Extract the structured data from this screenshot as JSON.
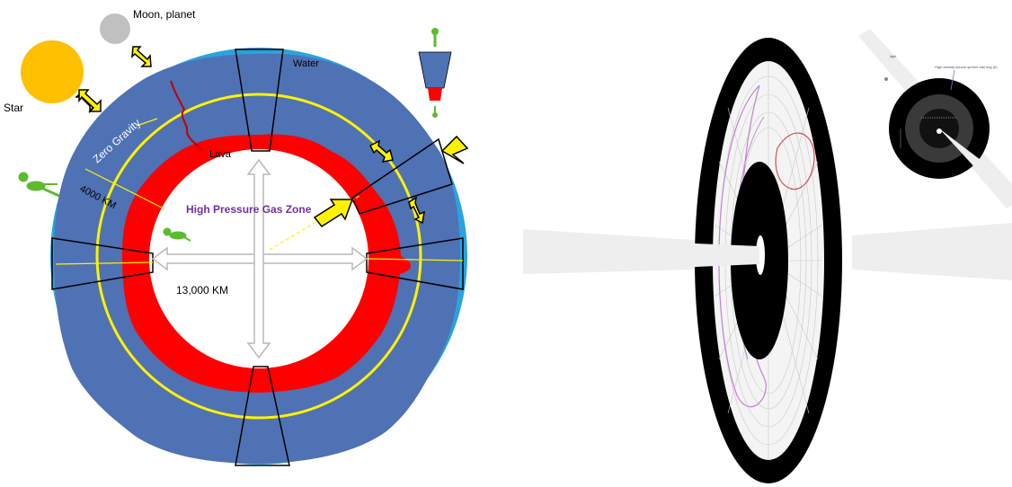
{
  "left_diagram": {
    "labels": {
      "moon": "Moon, planet",
      "star": "Star",
      "water": "Water",
      "zero_gravity": "Zero Gravity",
      "lava": "Lava",
      "radius": "4000 KM",
      "core": "High Pressure Gas Zone",
      "diameter": "13,000 KM"
    },
    "colors": {
      "ocean": "#29A3DE",
      "crust": "#4F72B4",
      "lava": "#FF0000",
      "ring": "#FFF200",
      "star": "#FFC000",
      "moon": "#C0C0C0",
      "arrow": "#FFF200",
      "figure": "#5DBB2E",
      "core_text": "#7030A0"
    }
  },
  "right_diagram": {
    "labels": {
      "light_label": "light",
      "inset_label": "High density source sphere ball ring (d)"
    },
    "colors": {
      "disc": "#000000",
      "grid": "#B0B0B0",
      "beam": "#EEEEEE",
      "curve_purple": "#C080D0",
      "curve_red": "#D05050"
    }
  }
}
